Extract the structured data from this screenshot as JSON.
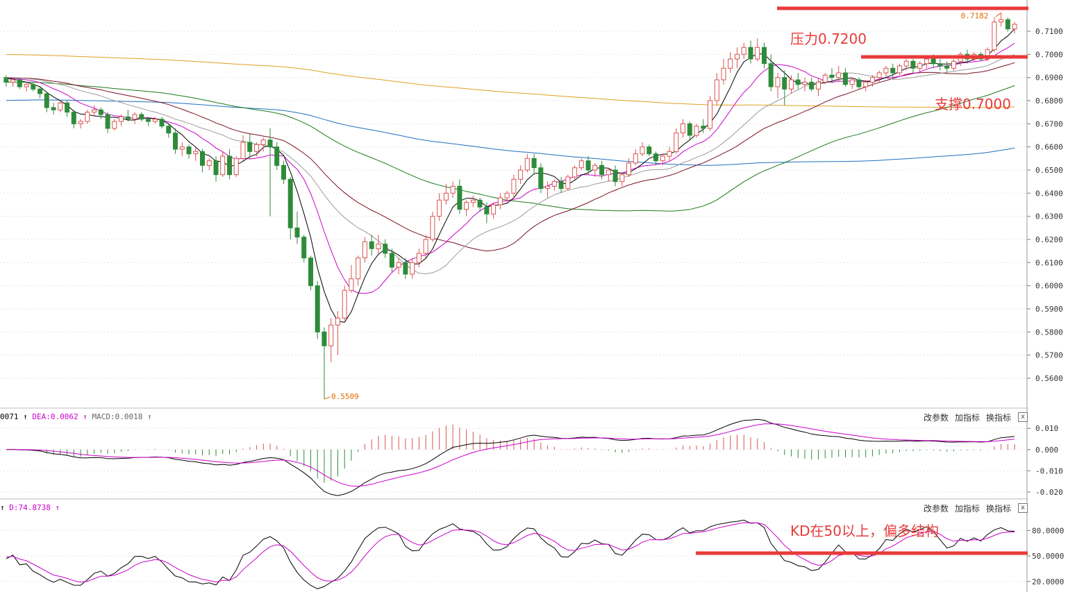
{
  "colors": {
    "up": "#d9534f",
    "down": "#2e8b3a",
    "ma5": "#000000",
    "ma10": "#cc00cc",
    "ma20": "#9a9a9a",
    "ma30": "#7a1020",
    "ma60": "#1a7a1a",
    "ma120": "#1f6fbf",
    "ma250": "#e0a020",
    "annotation": "#e83a3a",
    "grid": "#d0d0d0"
  },
  "main": {
    "price_axis": [
      "0.7100",
      "0.7000",
      "0.6900",
      "0.6800",
      "0.6700",
      "0.6600",
      "0.6500",
      "0.6400",
      "0.6300",
      "0.6200",
      "0.6100",
      "0.6000",
      "0.5900",
      "0.5800",
      "0.5700",
      "0.5600"
    ],
    "low_label": "0.5509",
    "high_label": "0.7182",
    "annotations": {
      "resistance": "压力0.7200",
      "support": "支撑0.7000"
    }
  },
  "macd_panel": {
    "label_dif": "0071 ↑",
    "label_dea": "DEA:0.0062 ↑",
    "label_macd": "MACD:0.0018 ↑",
    "axis": [
      "0.010",
      "0.000",
      "-0.010",
      "-0.020"
    ],
    "controls": {
      "params": "改参数",
      "add": "加指标",
      "switch": "换指标",
      "close": "x"
    }
  },
  "kd_panel": {
    "label_k": "↑",
    "label_d": "D:74.8738 ↑",
    "axis": [
      "80.0000",
      "50.0000",
      "20.0000"
    ],
    "annotation": "KD在50以上，偏多结构",
    "controls": {
      "params": "改参数",
      "add": "加指标",
      "switch": "换指标",
      "close": "x"
    }
  },
  "chart_data": {
    "type": "candlestick",
    "ylim": [
      0.548,
      0.722
    ],
    "candles": [
      [
        0.69,
        0.691,
        0.686,
        0.688
      ],
      [
        0.688,
        0.69,
        0.686,
        0.689
      ],
      [
        0.689,
        0.69,
        0.685,
        0.686
      ],
      [
        0.686,
        0.688,
        0.684,
        0.687
      ],
      [
        0.687,
        0.688,
        0.684,
        0.685
      ],
      [
        0.685,
        0.686,
        0.681,
        0.683
      ],
      [
        0.683,
        0.684,
        0.675,
        0.677
      ],
      [
        0.677,
        0.679,
        0.674,
        0.676
      ],
      [
        0.676,
        0.68,
        0.675,
        0.679
      ],
      [
        0.679,
        0.68,
        0.673,
        0.675
      ],
      [
        0.675,
        0.676,
        0.668,
        0.67
      ],
      [
        0.67,
        0.672,
        0.668,
        0.671
      ],
      [
        0.671,
        0.676,
        0.67,
        0.675
      ],
      [
        0.675,
        0.678,
        0.673,
        0.676
      ],
      [
        0.676,
        0.677,
        0.672,
        0.674
      ],
      [
        0.674,
        0.675,
        0.666,
        0.668
      ],
      [
        0.668,
        0.672,
        0.667,
        0.671
      ],
      [
        0.671,
        0.674,
        0.669,
        0.673
      ],
      [
        0.673,
        0.676,
        0.671,
        0.672
      ],
      [
        0.672,
        0.675,
        0.67,
        0.674
      ],
      [
        0.674,
        0.675,
        0.671,
        0.672
      ],
      [
        0.672,
        0.673,
        0.669,
        0.671
      ],
      [
        0.671,
        0.673,
        0.67,
        0.672
      ],
      [
        0.672,
        0.673,
        0.668,
        0.669
      ],
      [
        0.669,
        0.67,
        0.664,
        0.666
      ],
      [
        0.666,
        0.668,
        0.657,
        0.659
      ],
      [
        0.659,
        0.662,
        0.656,
        0.66
      ],
      [
        0.66,
        0.661,
        0.655,
        0.657
      ],
      [
        0.657,
        0.66,
        0.654,
        0.658
      ],
      [
        0.658,
        0.659,
        0.649,
        0.652
      ],
      [
        0.652,
        0.655,
        0.65,
        0.654
      ],
      [
        0.654,
        0.656,
        0.645,
        0.648
      ],
      [
        0.648,
        0.658,
        0.647,
        0.656
      ],
      [
        0.656,
        0.659,
        0.646,
        0.648
      ],
      [
        0.648,
        0.656,
        0.647,
        0.655
      ],
      [
        0.655,
        0.665,
        0.654,
        0.662
      ],
      [
        0.662,
        0.666,
        0.655,
        0.658
      ],
      [
        0.658,
        0.662,
        0.656,
        0.661
      ],
      [
        0.661,
        0.664,
        0.658,
        0.663
      ],
      [
        0.663,
        0.668,
        0.63,
        0.66
      ],
      [
        0.66,
        0.662,
        0.65,
        0.652
      ],
      [
        0.652,
        0.654,
        0.644,
        0.646
      ],
      [
        0.646,
        0.647,
        0.62,
        0.625
      ],
      [
        0.625,
        0.632,
        0.618,
        0.621
      ],
      [
        0.621,
        0.622,
        0.61,
        0.612
      ],
      [
        0.612,
        0.613,
        0.598,
        0.6
      ],
      [
        0.6,
        0.602,
        0.577,
        0.58
      ],
      [
        0.58,
        0.582,
        0.551,
        0.574
      ],
      [
        0.574,
        0.586,
        0.567,
        0.583
      ],
      [
        0.583,
        0.589,
        0.57,
        0.586
      ],
      [
        0.586,
        0.6,
        0.585,
        0.598
      ],
      [
        0.598,
        0.609,
        0.597,
        0.603
      ],
      [
        0.603,
        0.613,
        0.6,
        0.612
      ],
      [
        0.612,
        0.621,
        0.61,
        0.619
      ],
      [
        0.619,
        0.622,
        0.613,
        0.616
      ],
      [
        0.616,
        0.622,
        0.614,
        0.618
      ],
      [
        0.618,
        0.62,
        0.612,
        0.614
      ],
      [
        0.614,
        0.616,
        0.606,
        0.608
      ],
      [
        0.608,
        0.612,
        0.605,
        0.61
      ],
      [
        0.61,
        0.612,
        0.603,
        0.605
      ],
      [
        0.605,
        0.612,
        0.603,
        0.61
      ],
      [
        0.61,
        0.616,
        0.608,
        0.614
      ],
      [
        0.614,
        0.622,
        0.612,
        0.62
      ],
      [
        0.62,
        0.632,
        0.619,
        0.63
      ],
      [
        0.63,
        0.64,
        0.628,
        0.637
      ],
      [
        0.637,
        0.644,
        0.635,
        0.64
      ],
      [
        0.64,
        0.645,
        0.638,
        0.643
      ],
      [
        0.643,
        0.646,
        0.631,
        0.633
      ],
      [
        0.633,
        0.637,
        0.63,
        0.636
      ],
      [
        0.636,
        0.639,
        0.634,
        0.637
      ],
      [
        0.637,
        0.638,
        0.632,
        0.634
      ],
      [
        0.634,
        0.636,
        0.627,
        0.631
      ],
      [
        0.631,
        0.636,
        0.629,
        0.635
      ],
      [
        0.635,
        0.64,
        0.633,
        0.638
      ],
      [
        0.638,
        0.641,
        0.636,
        0.64
      ],
      [
        0.64,
        0.648,
        0.638,
        0.646
      ],
      [
        0.646,
        0.652,
        0.644,
        0.65
      ],
      [
        0.65,
        0.657,
        0.649,
        0.655
      ],
      [
        0.655,
        0.657,
        0.648,
        0.651
      ],
      [
        0.651,
        0.653,
        0.64,
        0.642
      ],
      [
        0.642,
        0.645,
        0.638,
        0.643
      ],
      [
        0.643,
        0.646,
        0.641,
        0.645
      ],
      [
        0.645,
        0.647,
        0.64,
        0.642
      ],
      [
        0.642,
        0.648,
        0.641,
        0.647
      ],
      [
        0.647,
        0.652,
        0.646,
        0.651
      ],
      [
        0.651,
        0.655,
        0.65,
        0.654
      ],
      [
        0.654,
        0.656,
        0.648,
        0.65
      ],
      [
        0.65,
        0.653,
        0.647,
        0.652
      ],
      [
        0.652,
        0.654,
        0.646,
        0.648
      ],
      [
        0.648,
        0.651,
        0.645,
        0.65
      ],
      [
        0.65,
        0.652,
        0.643,
        0.645
      ],
      [
        0.645,
        0.649,
        0.643,
        0.648
      ],
      [
        0.648,
        0.655,
        0.647,
        0.653
      ],
      [
        0.653,
        0.659,
        0.652,
        0.657
      ],
      [
        0.657,
        0.662,
        0.656,
        0.66
      ],
      [
        0.66,
        0.661,
        0.656,
        0.657
      ],
      [
        0.657,
        0.658,
        0.652,
        0.654
      ],
      [
        0.654,
        0.657,
        0.652,
        0.656
      ],
      [
        0.656,
        0.66,
        0.654,
        0.658
      ],
      [
        0.658,
        0.668,
        0.657,
        0.666
      ],
      [
        0.666,
        0.672,
        0.664,
        0.67
      ],
      [
        0.67,
        0.671,
        0.663,
        0.665
      ],
      [
        0.665,
        0.67,
        0.664,
        0.669
      ],
      [
        0.669,
        0.672,
        0.666,
        0.668
      ],
      [
        0.668,
        0.682,
        0.667,
        0.68
      ],
      [
        0.68,
        0.692,
        0.678,
        0.689
      ],
      [
        0.689,
        0.698,
        0.687,
        0.694
      ],
      [
        0.694,
        0.701,
        0.692,
        0.698
      ],
      [
        0.698,
        0.703,
        0.694,
        0.7
      ],
      [
        0.7,
        0.705,
        0.698,
        0.703
      ],
      [
        0.703,
        0.706,
        0.696,
        0.698
      ],
      [
        0.698,
        0.707,
        0.697,
        0.703
      ],
      [
        0.703,
        0.705,
        0.694,
        0.696
      ],
      [
        0.696,
        0.7,
        0.684,
        0.686
      ],
      [
        0.686,
        0.692,
        0.681,
        0.69
      ],
      [
        0.69,
        0.693,
        0.678,
        0.685
      ],
      [
        0.685,
        0.691,
        0.683,
        0.689
      ],
      [
        0.689,
        0.692,
        0.685,
        0.687
      ],
      [
        0.687,
        0.69,
        0.684,
        0.688
      ],
      [
        0.688,
        0.69,
        0.684,
        0.685
      ],
      [
        0.685,
        0.69,
        0.682,
        0.688
      ],
      [
        0.688,
        0.692,
        0.687,
        0.691
      ],
      [
        0.691,
        0.694,
        0.688,
        0.69
      ],
      [
        0.69,
        0.695,
        0.688,
        0.692
      ],
      [
        0.692,
        0.694,
        0.686,
        0.687
      ],
      [
        0.687,
        0.69,
        0.685,
        0.689
      ],
      [
        0.689,
        0.69,
        0.685,
        0.686
      ],
      [
        0.686,
        0.689,
        0.684,
        0.688
      ],
      [
        0.688,
        0.691,
        0.686,
        0.69
      ],
      [
        0.69,
        0.693,
        0.688,
        0.692
      ],
      [
        0.692,
        0.695,
        0.69,
        0.694
      ],
      [
        0.694,
        0.696,
        0.69,
        0.692
      ],
      [
        0.692,
        0.696,
        0.691,
        0.695
      ],
      [
        0.695,
        0.698,
        0.693,
        0.697
      ],
      [
        0.697,
        0.698,
        0.692,
        0.694
      ],
      [
        0.694,
        0.697,
        0.692,
        0.696
      ],
      [
        0.696,
        0.699,
        0.694,
        0.698
      ],
      [
        0.698,
        0.7,
        0.694,
        0.696
      ],
      [
        0.696,
        0.698,
        0.693,
        0.695
      ],
      [
        0.695,
        0.697,
        0.692,
        0.694
      ],
      [
        0.694,
        0.698,
        0.693,
        0.697
      ],
      [
        0.697,
        0.701,
        0.695,
        0.7
      ],
      [
        0.7,
        0.702,
        0.696,
        0.698
      ],
      [
        0.698,
        0.701,
        0.697,
        0.7
      ],
      [
        0.7,
        0.701,
        0.697,
        0.698
      ],
      [
        0.698,
        0.703,
        0.697,
        0.702
      ],
      [
        0.702,
        0.716,
        0.701,
        0.714
      ],
      [
        0.714,
        0.718,
        0.712,
        0.715
      ],
      [
        0.715,
        0.716,
        0.71,
        0.711
      ],
      [
        0.711,
        0.714,
        0.709,
        0.713
      ]
    ]
  }
}
